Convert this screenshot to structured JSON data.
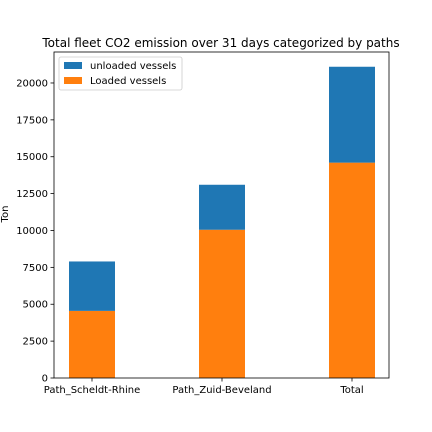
{
  "chart_data": {
    "type": "bar",
    "stacked": true,
    "title": "Total fleet CO2 emission over 31 days categorized by paths",
    "xlabel": "",
    "ylabel": "Ton",
    "categories": [
      "Path_Scheldt-Rhine",
      "Path_Zuid-Beveland",
      "Total"
    ],
    "ylim": [
      0,
      22100
    ],
    "yticks": [
      0,
      2500,
      5000,
      7500,
      10000,
      12500,
      15000,
      17500,
      20000
    ],
    "legend_position": "top-left",
    "grid": false,
    "series": [
      {
        "name": "Loaded vessels",
        "color": "#ff7f0e",
        "values": [
          4550,
          10050,
          14600
        ]
      },
      {
        "name": "unloaded vessels",
        "color": "#1f77b4",
        "values": [
          3350,
          3050,
          6500
        ]
      }
    ],
    "legend_order": [
      1,
      0
    ]
  }
}
